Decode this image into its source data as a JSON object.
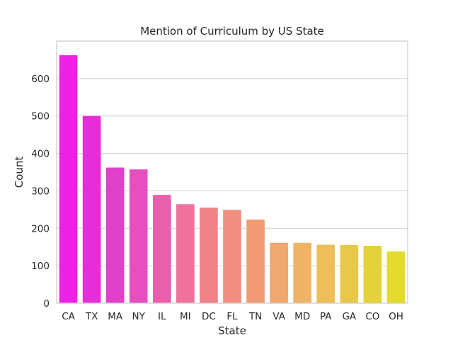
{
  "chart_data": {
    "type": "bar",
    "title": "Mention of Curriculum by US State",
    "xlabel": "State",
    "ylabel": "Count",
    "categories": [
      "CA",
      "TX",
      "MA",
      "NY",
      "IL",
      "MI",
      "DC",
      "FL",
      "TN",
      "VA",
      "MD",
      "PA",
      "GA",
      "CO",
      "OH"
    ],
    "values": [
      663,
      501,
      363,
      358,
      290,
      265,
      256,
      250,
      224,
      162,
      162,
      157,
      156,
      154,
      139
    ],
    "ylim": [
      0,
      700
    ],
    "yticks": [
      0,
      100,
      200,
      300,
      400,
      500,
      600
    ],
    "grid": "horizontal",
    "colors": [
      "#ee21e4",
      "#e52ed9",
      "#e140cc",
      "#e74fc0",
      "#eb60ad",
      "#ee729a",
      "#f08287",
      "#f08e7f",
      "#f09b74",
      "#f0a770",
      "#efb368",
      "#ecbf58",
      "#e8c84a",
      "#e5d139",
      "#e4db2b"
    ]
  }
}
